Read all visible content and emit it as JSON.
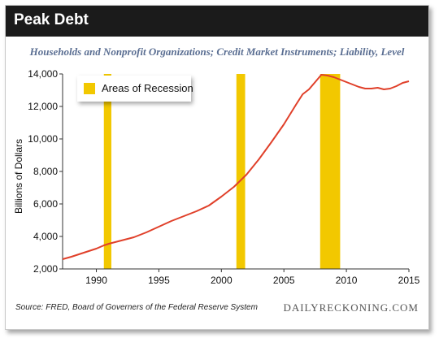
{
  "header": {
    "title": "Peak Debt",
    "subtitle": "Households and Nonprofit Organizations; Credit Market Instruments; Liability, Level",
    "source": "Source: FRED, Board of Governers of the Federal Reserve System",
    "brand": "DAILYRECKONING.COM"
  },
  "colors": {
    "line": "#e0402a",
    "recession": "#f2c800",
    "header_bg": "#1b1b1b",
    "subtitle": "#5a6e92"
  },
  "chart_data": {
    "type": "line",
    "title": "Peak Debt",
    "subtitle": "Households and Nonprofit Organizations; Credit Market Instruments; Liability, Level",
    "xlabel": "",
    "ylabel": "Billions of Dollars",
    "xlim": [
      1987.3,
      2015
    ],
    "ylim": [
      2000,
      14000
    ],
    "x_ticks": [
      1990,
      1995,
      2000,
      2005,
      2010,
      2015
    ],
    "y_ticks": [
      2000,
      4000,
      6000,
      8000,
      10000,
      12000,
      14000
    ],
    "y_tick_labels": [
      "2,000",
      "4,000",
      "6,000",
      "8,000",
      "10,000",
      "12,000",
      "14,000"
    ],
    "legend": {
      "label": "Areas of Recession",
      "placement": "top-left"
    },
    "grid": false,
    "recessions": [
      [
        1990.6,
        1991.2
      ],
      [
        2001.2,
        2001.9
      ],
      [
        2007.9,
        2009.5
      ]
    ],
    "series": [
      {
        "x": [
          1987.3,
          1988,
          1989,
          1990,
          1990.6,
          1991,
          1992,
          1993,
          1994,
          1995,
          1996,
          1997,
          1998,
          1999,
          2000,
          2001,
          2002,
          2003,
          2004,
          2005,
          2006,
          2006.5,
          2007,
          2007.5,
          2008,
          2008.5,
          2009,
          2009.5,
          2010,
          2010.5,
          2011,
          2011.5,
          2012,
          2012.5,
          2013,
          2013.5,
          2014,
          2014.5,
          2015
        ],
        "values": [
          2600,
          2750,
          3000,
          3250,
          3450,
          3550,
          3750,
          3950,
          4250,
          4600,
          4950,
          5250,
          5550,
          5900,
          6450,
          7050,
          7800,
          8750,
          9800,
          10900,
          12150,
          12750,
          13050,
          13500,
          13950,
          13900,
          13800,
          13650,
          13500,
          13350,
          13200,
          13100,
          13100,
          13150,
          13050,
          13100,
          13250,
          13450,
          13550
        ]
      }
    ]
  }
}
